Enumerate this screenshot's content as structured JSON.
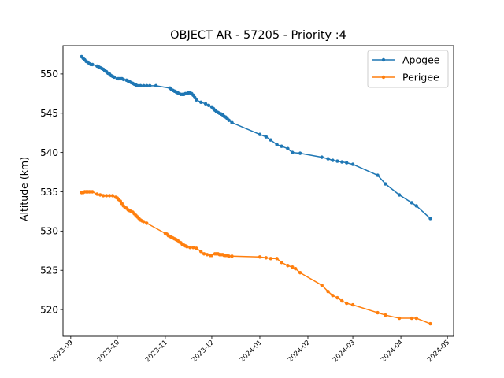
{
  "chart_data": {
    "type": "line",
    "title": "OBJECT AR - 57205 - Priority :4",
    "xlabel": "",
    "ylabel": "Altitude (km)",
    "x_type": "date",
    "xlim": [
      "2023-08-27",
      "2024-05-05"
    ],
    "ylim": [
      516.6,
      553.6
    ],
    "x_ticks": [
      "2023-09-01",
      "2023-10-01",
      "2023-11-01",
      "2023-12-01",
      "2024-01-01",
      "2024-02-01",
      "2024-03-01",
      "2024-04-01",
      "2024-05-01"
    ],
    "x_tick_labels": [
      "2023-09",
      "2023-10",
      "2023-11",
      "2023-12",
      "2024-01",
      "2024-02",
      "2024-03",
      "2024-04",
      "2024-05"
    ],
    "y_ticks": [
      520,
      525,
      530,
      535,
      540,
      545,
      550
    ],
    "y_tick_labels": [
      "520",
      "525",
      "530",
      "535",
      "540",
      "545",
      "550"
    ],
    "grid": false,
    "legend_position": "top-right",
    "series": [
      {
        "name": "Apogee",
        "color": "#1f77b4",
        "marker": "circle",
        "points": [
          [
            "2023-09-08",
            552.2
          ],
          [
            "2023-09-09",
            552.0
          ],
          [
            "2023-09-10",
            551.8
          ],
          [
            "2023-09-11",
            551.6
          ],
          [
            "2023-09-12",
            551.5
          ],
          [
            "2023-09-13",
            551.3
          ],
          [
            "2023-09-14",
            551.2
          ],
          [
            "2023-09-15",
            551.2
          ],
          [
            "2023-09-18",
            551.0
          ],
          [
            "2023-09-19",
            550.9
          ],
          [
            "2023-09-20",
            550.8
          ],
          [
            "2023-09-21",
            550.7
          ],
          [
            "2023-09-22",
            550.6
          ],
          [
            "2023-09-23",
            550.4
          ],
          [
            "2023-09-24",
            550.3
          ],
          [
            "2023-09-25",
            550.1
          ],
          [
            "2023-09-26",
            550.0
          ],
          [
            "2023-09-27",
            549.8
          ],
          [
            "2023-09-28",
            549.7
          ],
          [
            "2023-09-29",
            549.6
          ],
          [
            "2023-10-01",
            549.4
          ],
          [
            "2023-10-02",
            549.4
          ],
          [
            "2023-10-03",
            549.4
          ],
          [
            "2023-10-04",
            549.4
          ],
          [
            "2023-10-05",
            549.3
          ],
          [
            "2023-10-07",
            549.2
          ],
          [
            "2023-10-08",
            549.1
          ],
          [
            "2023-10-09",
            549.0
          ],
          [
            "2023-10-10",
            548.9
          ],
          [
            "2023-10-11",
            548.8
          ],
          [
            "2023-10-12",
            548.7
          ],
          [
            "2023-10-13",
            548.6
          ],
          [
            "2023-10-14",
            548.5
          ],
          [
            "2023-10-16",
            548.5
          ],
          [
            "2023-10-18",
            548.5
          ],
          [
            "2023-10-20",
            548.5
          ],
          [
            "2023-10-22",
            548.5
          ],
          [
            "2023-10-26",
            548.5
          ],
          [
            "2023-11-04",
            548.2
          ],
          [
            "2023-11-05",
            548.0
          ],
          [
            "2023-11-06",
            547.9
          ],
          [
            "2023-11-07",
            547.8
          ],
          [
            "2023-11-08",
            547.7
          ],
          [
            "2023-11-09",
            547.6
          ],
          [
            "2023-11-10",
            547.5
          ],
          [
            "2023-11-11",
            547.4
          ],
          [
            "2023-11-12",
            547.4
          ],
          [
            "2023-11-13",
            547.4
          ],
          [
            "2023-11-14",
            547.5
          ],
          [
            "2023-11-15",
            547.5
          ],
          [
            "2023-11-16",
            547.6
          ],
          [
            "2023-11-17",
            547.6
          ],
          [
            "2023-11-18",
            547.5
          ],
          [
            "2023-11-19",
            547.3
          ],
          [
            "2023-11-20",
            547.0
          ],
          [
            "2023-11-21",
            546.7
          ],
          [
            "2023-11-24",
            546.4
          ],
          [
            "2023-11-27",
            546.2
          ],
          [
            "2023-11-29",
            546.0
          ],
          [
            "2023-12-01",
            545.8
          ],
          [
            "2023-12-02",
            545.6
          ],
          [
            "2023-12-03",
            545.4
          ],
          [
            "2023-12-04",
            545.2
          ],
          [
            "2023-12-05",
            545.1
          ],
          [
            "2023-12-06",
            545.0
          ],
          [
            "2023-12-07",
            544.9
          ],
          [
            "2023-12-08",
            544.8
          ],
          [
            "2023-12-09",
            544.6
          ],
          [
            "2023-12-10",
            544.5
          ],
          [
            "2023-12-11",
            544.3
          ],
          [
            "2023-12-12",
            544.1
          ],
          [
            "2023-12-14",
            543.8
          ],
          [
            "2024-01-01",
            542.3
          ],
          [
            "2024-01-05",
            542.0
          ],
          [
            "2024-01-08",
            541.6
          ],
          [
            "2024-01-12",
            541.0
          ],
          [
            "2024-01-15",
            540.8
          ],
          [
            "2024-01-19",
            540.5
          ],
          [
            "2024-01-22",
            540.0
          ],
          [
            "2024-01-27",
            539.9
          ],
          [
            "2024-02-10",
            539.4
          ],
          [
            "2024-02-14",
            539.2
          ],
          [
            "2024-02-17",
            539.0
          ],
          [
            "2024-02-20",
            538.9
          ],
          [
            "2024-02-23",
            538.8
          ],
          [
            "2024-02-26",
            538.7
          ],
          [
            "2024-03-01",
            538.5
          ],
          [
            "2024-03-17",
            537.1
          ],
          [
            "2024-03-22",
            536.0
          ],
          [
            "2024-03-31",
            534.6
          ],
          [
            "2024-04-08",
            533.6
          ],
          [
            "2024-04-11",
            533.2
          ],
          [
            "2024-04-20",
            531.6
          ]
        ]
      },
      {
        "name": "Perigee",
        "color": "#ff7f0e",
        "marker": "circle",
        "points": [
          [
            "2023-09-08",
            534.9
          ],
          [
            "2023-09-09",
            534.9
          ],
          [
            "2023-09-10",
            535.0
          ],
          [
            "2023-09-11",
            535.0
          ],
          [
            "2023-09-12",
            535.0
          ],
          [
            "2023-09-13",
            535.0
          ],
          [
            "2023-09-14",
            535.0
          ],
          [
            "2023-09-15",
            535.0
          ],
          [
            "2023-09-18",
            534.7
          ],
          [
            "2023-09-20",
            534.6
          ],
          [
            "2023-09-22",
            534.5
          ],
          [
            "2023-09-24",
            534.5
          ],
          [
            "2023-09-26",
            534.5
          ],
          [
            "2023-09-28",
            534.5
          ],
          [
            "2023-09-30",
            534.3
          ],
          [
            "2023-10-01",
            534.2
          ],
          [
            "2023-10-02",
            534.0
          ],
          [
            "2023-10-03",
            533.8
          ],
          [
            "2023-10-04",
            533.5
          ],
          [
            "2023-10-05",
            533.2
          ],
          [
            "2023-10-06",
            533.0
          ],
          [
            "2023-10-07",
            532.9
          ],
          [
            "2023-10-08",
            532.7
          ],
          [
            "2023-10-09",
            532.6
          ],
          [
            "2023-10-10",
            532.5
          ],
          [
            "2023-10-11",
            532.4
          ],
          [
            "2023-10-12",
            532.2
          ],
          [
            "2023-10-13",
            532.0
          ],
          [
            "2023-10-14",
            531.8
          ],
          [
            "2023-10-15",
            531.6
          ],
          [
            "2023-10-16",
            531.4
          ],
          [
            "2023-10-17",
            531.3
          ],
          [
            "2023-10-18",
            531.2
          ],
          [
            "2023-10-20",
            531.0
          ],
          [
            "2023-11-01",
            529.7
          ],
          [
            "2023-11-02",
            529.6
          ],
          [
            "2023-11-03",
            529.4
          ],
          [
            "2023-11-04",
            529.3
          ],
          [
            "2023-11-05",
            529.2
          ],
          [
            "2023-11-06",
            529.1
          ],
          [
            "2023-11-07",
            529.0
          ],
          [
            "2023-11-08",
            528.9
          ],
          [
            "2023-11-09",
            528.8
          ],
          [
            "2023-11-10",
            528.6
          ],
          [
            "2023-11-11",
            528.5
          ],
          [
            "2023-11-12",
            528.3
          ],
          [
            "2023-11-13",
            528.2
          ],
          [
            "2023-11-14",
            528.1
          ],
          [
            "2023-11-15",
            528.0
          ],
          [
            "2023-11-17",
            527.9
          ],
          [
            "2023-11-19",
            527.9
          ],
          [
            "2023-11-21",
            527.8
          ],
          [
            "2023-11-24",
            527.4
          ],
          [
            "2023-11-26",
            527.1
          ],
          [
            "2023-11-28",
            527.0
          ],
          [
            "2023-11-30",
            526.9
          ],
          [
            "2023-12-01",
            526.9
          ],
          [
            "2023-12-03",
            527.1
          ],
          [
            "2023-12-04",
            527.1
          ],
          [
            "2023-12-05",
            527.1
          ],
          [
            "2023-12-06",
            527.0
          ],
          [
            "2023-12-07",
            527.0
          ],
          [
            "2023-12-08",
            527.0
          ],
          [
            "2023-12-09",
            526.9
          ],
          [
            "2023-12-10",
            526.9
          ],
          [
            "2023-12-11",
            526.9
          ],
          [
            "2023-12-12",
            526.8
          ],
          [
            "2023-12-14",
            526.8
          ],
          [
            "2024-01-01",
            526.7
          ],
          [
            "2024-01-05",
            526.6
          ],
          [
            "2024-01-08",
            526.5
          ],
          [
            "2024-01-12",
            526.5
          ],
          [
            "2024-01-15",
            526.0
          ],
          [
            "2024-01-19",
            525.6
          ],
          [
            "2024-01-22",
            525.4
          ],
          [
            "2024-01-24",
            525.2
          ],
          [
            "2024-01-27",
            524.7
          ],
          [
            "2024-02-10",
            523.1
          ],
          [
            "2024-02-14",
            522.3
          ],
          [
            "2024-02-17",
            521.8
          ],
          [
            "2024-02-20",
            521.5
          ],
          [
            "2024-02-23",
            521.1
          ],
          [
            "2024-02-26",
            520.8
          ],
          [
            "2024-03-01",
            520.6
          ],
          [
            "2024-03-17",
            519.6
          ],
          [
            "2024-03-22",
            519.3
          ],
          [
            "2024-03-31",
            518.9
          ],
          [
            "2024-04-08",
            518.9
          ],
          [
            "2024-04-11",
            518.9
          ],
          [
            "2024-04-20",
            518.2
          ]
        ]
      }
    ]
  }
}
